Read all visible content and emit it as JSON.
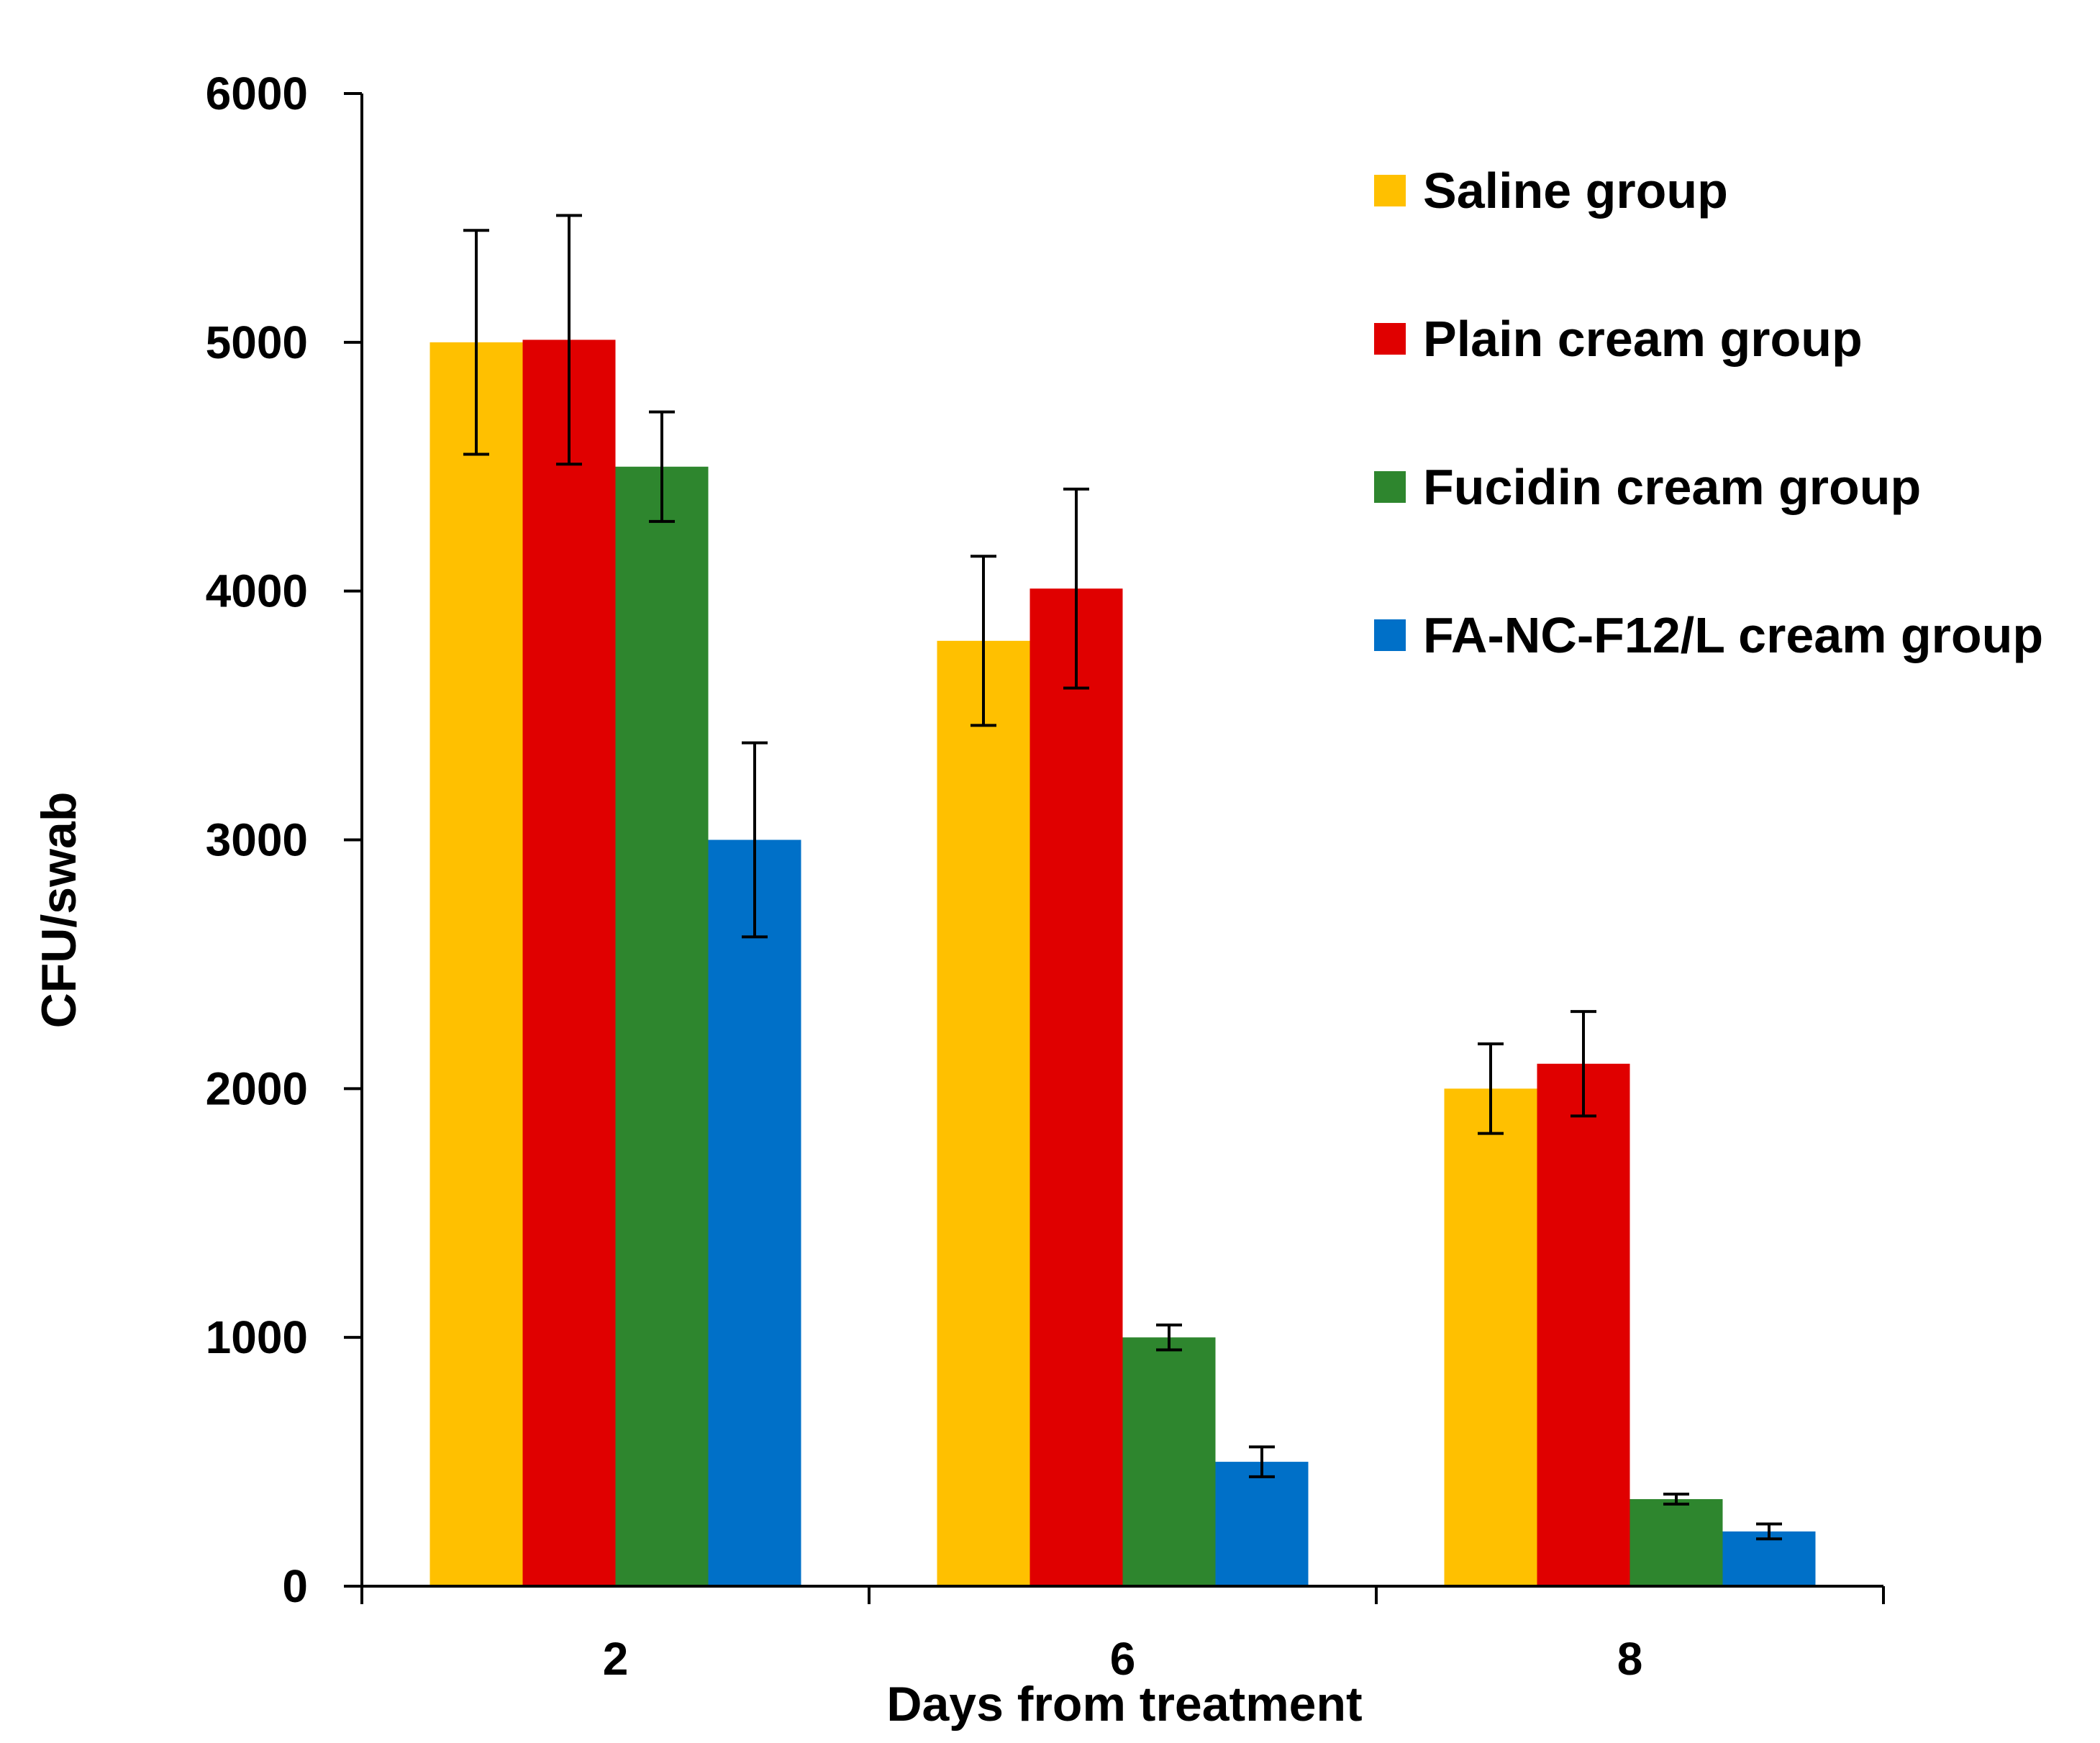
{
  "chart_data": {
    "type": "bar",
    "title": "",
    "xlabel": "Days from treatment",
    "ylabel": "CFU/swab",
    "ylim": [
      0,
      6000
    ],
    "yticks": [
      0,
      1000,
      2000,
      3000,
      4000,
      5000,
      6000
    ],
    "grid": false,
    "legend_position": "top-right",
    "categories": [
      "2",
      "6",
      "8"
    ],
    "series": [
      {
        "name": "Saline group",
        "color": "#FFC000",
        "values": [
          5000,
          3800,
          2000
        ],
        "errors": [
          450,
          340,
          180
        ]
      },
      {
        "name": "Plain cream group",
        "color": "#E00000",
        "values": [
          5010,
          4010,
          2100
        ],
        "errors": [
          500,
          400,
          210
        ]
      },
      {
        "name": "Fucidin cream group",
        "color": "#2E862E",
        "values": [
          4500,
          1000,
          350
        ],
        "errors": [
          220,
          50,
          20
        ]
      },
      {
        "name": "FA-NC-F12/L cream group",
        "color": "#0070C8",
        "values": [
          3000,
          500,
          220
        ],
        "errors": [
          390,
          60,
          30
        ]
      }
    ]
  }
}
